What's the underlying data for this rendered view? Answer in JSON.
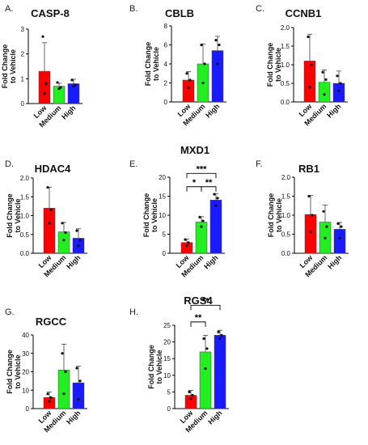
{
  "colors": {
    "low": "#ff0000",
    "medium": "#22ee22",
    "high": "#1a1aff"
  },
  "chart_data": [
    {
      "panel": "A.",
      "title": "CASP-8",
      "type": "bar",
      "categories": [
        "Low",
        "Medium",
        "High"
      ],
      "ylabel": "Fold Change to Vehicle",
      "ylim": [
        0,
        3
      ],
      "yticks": [
        0,
        1,
        2,
        3
      ],
      "tick_labels": [
        "0",
        "1",
        "2",
        "3"
      ],
      "values": [
        1.3,
        0.7,
        0.8
      ],
      "errors": [
        1.15,
        0.12,
        0.18
      ],
      "points": [
        [
          2.7,
          0.8,
          0.4
        ],
        [
          0.85,
          0.65,
          0.6
        ],
        [
          0.95,
          0.75,
          0.7
        ]
      ],
      "significance": []
    },
    {
      "panel": "B.",
      "title": "CBLB",
      "type": "bar",
      "categories": [
        "Low",
        "Medium",
        "High"
      ],
      "ylabel": "Fold Change to Vehicle",
      "ylim": [
        0,
        8
      ],
      "yticks": [
        0,
        2,
        4,
        6,
        8
      ],
      "tick_labels": [
        "0",
        "2",
        "4",
        "6",
        "8"
      ],
      "values": [
        2.3,
        4.0,
        5.4
      ],
      "errors": [
        0.9,
        2.1,
        1.5
      ],
      "points": [
        [
          3.0,
          2.3,
          1.5
        ],
        [
          6.0,
          4.0,
          2.0
        ],
        [
          6.5,
          6.0,
          4.0
        ]
      ],
      "significance": []
    },
    {
      "panel": "C.",
      "title": "CCNB1",
      "type": "bar",
      "categories": [
        "Low",
        "Medium",
        "High"
      ],
      "ylabel": "Fold Change to Vehicle",
      "ylim": [
        0,
        2
      ],
      "yticks": [
        0,
        0.5,
        1,
        1.5,
        2
      ],
      "tick_labels": [
        "0.0",
        "0.5",
        "1.0",
        "1.5",
        "2.0"
      ],
      "values": [
        1.1,
        0.53,
        0.5
      ],
      "errors": [
        0.72,
        0.33,
        0.33
      ],
      "points": [
        [
          1.75,
          1.0,
          0.4
        ],
        [
          0.8,
          0.6,
          0.2
        ],
        [
          0.7,
          0.5,
          0.3
        ]
      ],
      "significance": []
    },
    {
      "panel": "D.",
      "title": "HDAC4",
      "type": "bar",
      "categories": [
        "Low",
        "Medium",
        "High"
      ],
      "ylabel": "Fold Change to Vehicle",
      "ylim": [
        0,
        2
      ],
      "yticks": [
        0,
        0.5,
        1,
        1.5,
        2
      ],
      "tick_labels": [
        "0.0",
        "0.5",
        "1.0",
        "1.5",
        "2.0"
      ],
      "values": [
        1.2,
        0.57,
        0.4
      ],
      "errors": [
        0.55,
        0.25,
        0.25
      ],
      "points": [
        [
          1.75,
          1.15,
          0.8
        ],
        [
          0.8,
          0.55,
          0.35
        ],
        [
          0.6,
          0.35,
          0.2
        ]
      ],
      "significance": []
    },
    {
      "panel": "E.",
      "title": "MXD1",
      "type": "bar",
      "categories": [
        "Low",
        "Medium",
        "High"
      ],
      "ylabel": "Fold Change to Vehicle",
      "ylim": [
        0,
        20
      ],
      "yticks": [
        0,
        5,
        10,
        15,
        20
      ],
      "tick_labels": [
        "0",
        "5",
        "10",
        "15",
        "20"
      ],
      "values": [
        2.8,
        8.2,
        14.0
      ],
      "errors": [
        0.9,
        1.4,
        1.7
      ],
      "points": [
        [
          3.6,
          2.8,
          2.0
        ],
        [
          9.5,
          8.5,
          7.0
        ],
        [
          15.5,
          14.5,
          12.5
        ]
      ],
      "significance": [
        {
          "from": 0,
          "to": 1,
          "label": "*",
          "y": 17.5
        },
        {
          "from": 1,
          "to": 2,
          "label": "**",
          "y": 17.5
        },
        {
          "from": 0,
          "to": 2,
          "label": "***",
          "y": 21.0
        }
      ]
    },
    {
      "panel": "F.",
      "title": "RB1",
      "type": "bar",
      "categories": [
        "Low",
        "Medium",
        "High"
      ],
      "ylabel": "Fold Change to Vehicle",
      "ylim": [
        0,
        2
      ],
      "yticks": [
        0,
        0.5,
        1,
        1.5,
        2
      ],
      "tick_labels": [
        "0.0",
        "0.5",
        "1.0",
        "1.5",
        "2.0"
      ],
      "values": [
        1.02,
        0.82,
        0.63
      ],
      "errors": [
        0.5,
        0.45,
        0.18
      ],
      "points": [
        [
          1.5,
          1.0,
          0.55
        ],
        [
          1.1,
          0.7,
          0.4
        ],
        [
          0.78,
          0.7,
          0.4
        ]
      ],
      "significance": []
    },
    {
      "panel": "G.",
      "title": "RGCC",
      "type": "bar",
      "categories": [
        "Low",
        "Medium",
        "High"
      ],
      "ylabel": "Fold Change to Vehicle",
      "ylim": [
        0,
        40
      ],
      "yticks": [
        0,
        10,
        20,
        30,
        40
      ],
      "tick_labels": [
        "0",
        "10",
        "20",
        "30",
        "40"
      ],
      "values": [
        6,
        21,
        14
      ],
      "errors": [
        3,
        14,
        9
      ],
      "points": [
        [
          8,
          6,
          4
        ],
        [
          30,
          20,
          8
        ],
        [
          22,
          15,
          5
        ]
      ],
      "significance": []
    },
    {
      "panel": "H.",
      "title": "RGS4",
      "type": "bar",
      "categories": [
        "Low",
        "Medium",
        "High"
      ],
      "ylabel": "Fold Change to Vehicle",
      "ylim": [
        0,
        25
      ],
      "yticks": [
        0,
        5,
        10,
        15,
        20,
        25
      ],
      "tick_labels": [
        "0",
        "5",
        "10",
        "15",
        "20",
        "25"
      ],
      "values": [
        4,
        17,
        22
      ],
      "errors": [
        1.5,
        5,
        1.5
      ],
      "points": [
        [
          5,
          4,
          3
        ],
        [
          21,
          18,
          12
        ],
        [
          23,
          22,
          21
        ]
      ],
      "significance": [
        {
          "from": 0,
          "to": 1,
          "label": "**",
          "y": 26
        },
        {
          "from": 0,
          "to": 2,
          "label": "**",
          "y": 31
        }
      ]
    }
  ]
}
